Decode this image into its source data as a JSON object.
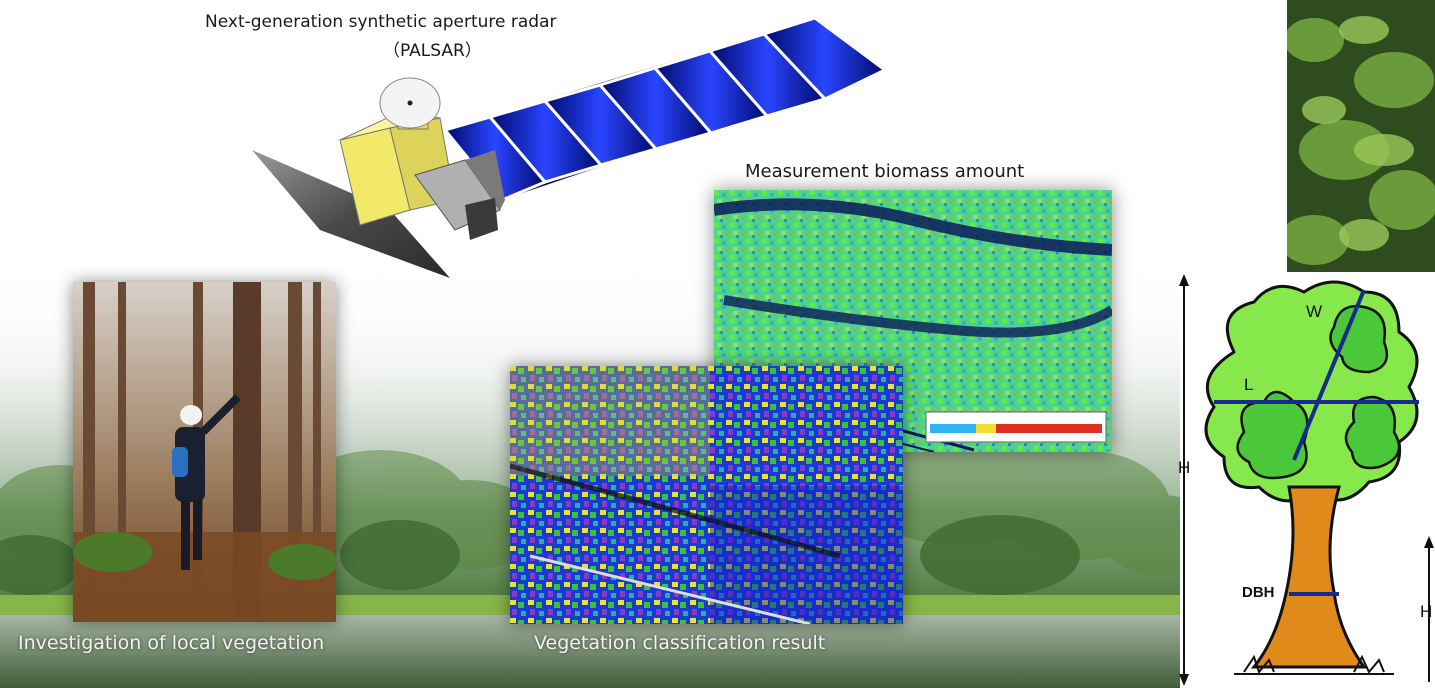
{
  "radar": {
    "title_line1": "Next-generation synthetic aperture radar",
    "title_line2": "（PALSAR）"
  },
  "biomass": {
    "title": "Measurement biomass amount"
  },
  "captions": {
    "local_vegetation": "Investigation of local vegetation",
    "classification": "Vegetation classification result"
  },
  "tree_diagram": {
    "label_w": "W",
    "label_l": "L",
    "label_h_left": "H",
    "label_dbh": "DBH",
    "label_h_right": "H"
  },
  "colors": {
    "solar_panel": "#0a18c8",
    "satellite_body": "#f2e86a",
    "tree_crown": "#86e84a",
    "tree_trunk": "#e08a1c",
    "measure_line": "#1a2a8a"
  }
}
